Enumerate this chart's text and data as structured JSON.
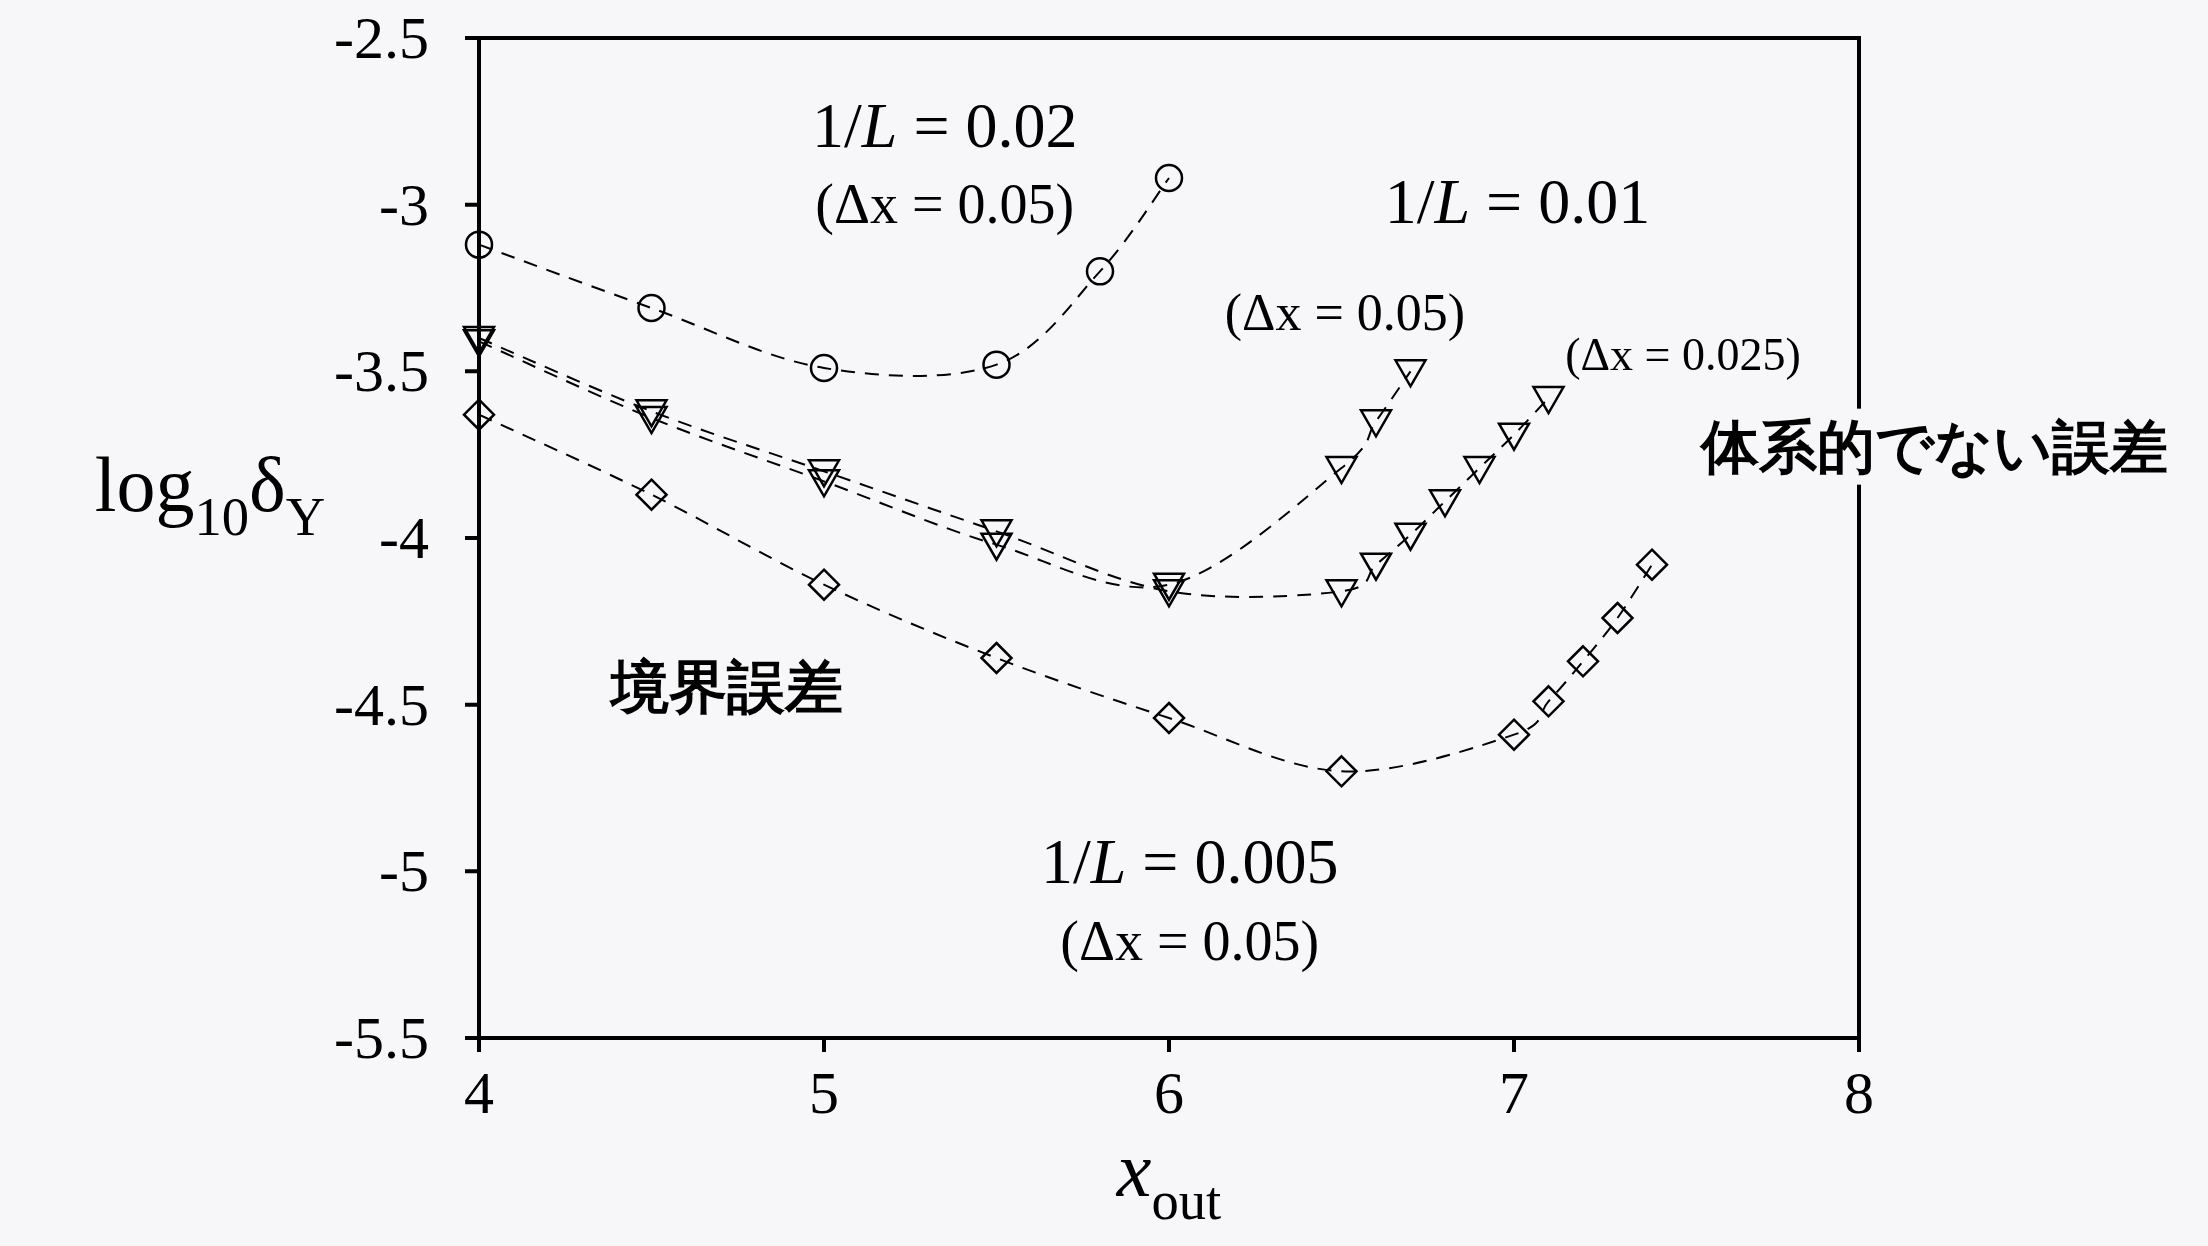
{
  "chart_data": {
    "type": "line",
    "xlabel": "*x*$_{out}$",
    "ylabel": "log$_{10}$δ$_{Y}$",
    "xlim": [
      4,
      8
    ],
    "xticks": [
      4,
      5,
      6,
      7,
      8
    ],
    "ylim": [
      -5.5,
      -2.5
    ],
    "yticks": [
      -2.5,
      -3,
      -3.5,
      -4,
      -4.5,
      -5,
      -5.5
    ],
    "grid": false,
    "line_style": "dashed",
    "series": [
      {
        "color": "#000000",
        "marker": "circle",
        "x": [
          4,
          4.5,
          5,
          5.5,
          5.8,
          6
        ],
        "values": [
          -3.12,
          -3.31,
          -3.49,
          -3.48,
          -3.2,
          -2.92
        ]
      },
      {
        "color": "#000000",
        "marker": "triangle",
        "x": [
          4,
          4.5,
          5,
          5.5,
          6,
          6.5,
          6.6,
          6.7
        ],
        "values": [
          -3.41,
          -3.64,
          -3.83,
          -4.02,
          -4.14,
          -3.79,
          -3.65,
          -3.5
        ]
      },
      {
        "color": "#000000",
        "marker": "triangle",
        "x": [
          4,
          4.5,
          5,
          5.5,
          6,
          6.5,
          6.6,
          6.7,
          6.8,
          6.9,
          7.0,
          7.1
        ],
        "values": [
          -3.4,
          -3.62,
          -3.8,
          -3.98,
          -4.16,
          -4.16,
          -4.08,
          -3.99,
          -3.89,
          -3.79,
          -3.69,
          -3.58
        ]
      },
      {
        "color": "#000000",
        "marker": "diamond",
        "x": [
          4,
          4.5,
          5,
          5.5,
          6,
          6.5,
          7.0,
          7.1,
          7.2,
          7.3,
          7.4
        ],
        "values": [
          -3.63,
          -3.87,
          -4.14,
          -4.36,
          -4.54,
          -4.7,
          -4.59,
          -4.49,
          -4.37,
          -4.24,
          -4.08
        ]
      }
    ],
    "annotations": [
      "1/*L* = 0.02",
      "(Δx = 0.05)",
      "1/*L* = 0.01",
      "(Δx = 0.05)",
      "(Δx = 0.025)",
      "1/*L* = 0.005",
      "(Δx = 0.05)",
      "体系的でない誤差",
      "境界誤差"
    ]
  }
}
